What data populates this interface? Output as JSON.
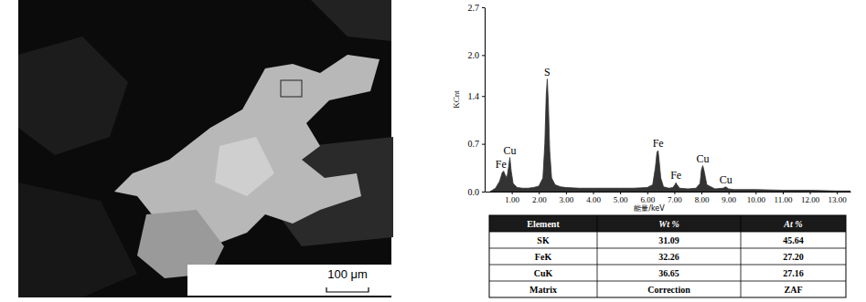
{
  "micrograph": {
    "scale_bar": "100 μm"
  },
  "chart_data": {
    "type": "area",
    "color": "#333333",
    "ylabel": "KCnt",
    "xlabel": "能量/keV",
    "x": [
      0.2,
      0.4,
      0.55,
      0.65,
      0.7,
      0.75,
      0.82,
      0.88,
      0.93,
      0.98,
      1.05,
      1.2,
      1.4,
      1.6,
      1.8,
      2.0,
      2.15,
      2.22,
      2.27,
      2.31,
      2.35,
      2.4,
      2.47,
      2.6,
      2.8,
      3.0,
      3.5,
      4.0,
      4.5,
      5.0,
      5.5,
      6.0,
      6.2,
      6.3,
      6.36,
      6.4,
      6.44,
      6.5,
      6.6,
      6.8,
      6.95,
      7.02,
      7.06,
      7.1,
      7.2,
      7.5,
      7.8,
      7.95,
      8.0,
      8.05,
      8.1,
      8.2,
      8.5,
      8.8,
      8.9,
      9.0,
      9.2,
      10.0,
      11.0,
      12.0,
      13.0,
      13.5
    ],
    "values": [
      0.0,
      0.05,
      0.15,
      0.28,
      0.3,
      0.25,
      0.2,
      0.35,
      0.5,
      0.3,
      0.12,
      0.06,
      0.05,
      0.05,
      0.06,
      0.08,
      0.2,
      0.7,
      1.4,
      1.65,
      1.3,
      0.6,
      0.2,
      0.1,
      0.07,
      0.06,
      0.05,
      0.05,
      0.05,
      0.05,
      0.05,
      0.06,
      0.1,
      0.35,
      0.58,
      0.6,
      0.45,
      0.2,
      0.07,
      0.05,
      0.06,
      0.1,
      0.13,
      0.1,
      0.05,
      0.04,
      0.05,
      0.12,
      0.32,
      0.38,
      0.3,
      0.1,
      0.04,
      0.05,
      0.07,
      0.04,
      0.03,
      0.03,
      0.02,
      0.02,
      0.01,
      0.01
    ],
    "xlim": [
      0,
      13.5
    ],
    "xticks": [
      {
        "value": 1,
        "label": "1.00"
      },
      {
        "value": 2,
        "label": "2.00"
      },
      {
        "value": 3,
        "label": "3.00"
      },
      {
        "value": 4,
        "label": "4.00"
      },
      {
        "value": 5,
        "label": "5.00"
      },
      {
        "value": 6,
        "label": "6.00"
      },
      {
        "value": 7,
        "label": "7.00"
      },
      {
        "value": 8,
        "label": "8.00"
      },
      {
        "value": 9,
        "label": "9.00"
      },
      {
        "value": 10,
        "label": "10.00"
      },
      {
        "value": 11,
        "label": "11.00"
      },
      {
        "value": 12,
        "label": "12.00"
      },
      {
        "value": 13,
        "label": "13.00"
      }
    ],
    "ylim": [
      0,
      2.7
    ],
    "yticks": [
      {
        "value": 0,
        "label": "0.0"
      },
      0.7,
      1.4,
      {
        "value": 2,
        "label": "2.0"
      },
      2.7
    ],
    "grid": false,
    "annotations": [
      {
        "text": "Fe",
        "x": 0.7,
        "y": 0.3
      },
      {
        "text": "Cu",
        "x": 0.93,
        "y": 0.5
      },
      {
        "text": "S",
        "x": 2.31,
        "y": 1.65
      },
      {
        "text": "Fe",
        "x": 6.4,
        "y": 0.6
      },
      {
        "text": "Fe",
        "x": 7.06,
        "y": 0.13
      },
      {
        "text": "Cu",
        "x": 8.05,
        "y": 0.38
      },
      {
        "text": "Cu",
        "x": 8.9,
        "y": 0.07
      }
    ]
  },
  "table": {
    "header": [
      "Element",
      "Wt %",
      "At %"
    ],
    "rows": [
      [
        "SK",
        "31.09",
        "45.64"
      ],
      [
        "FeK",
        "32.26",
        "27.20"
      ],
      [
        "CuK",
        "36.65",
        "27.16"
      ],
      [
        "Matrix",
        "Correction",
        "ZAF"
      ]
    ]
  }
}
